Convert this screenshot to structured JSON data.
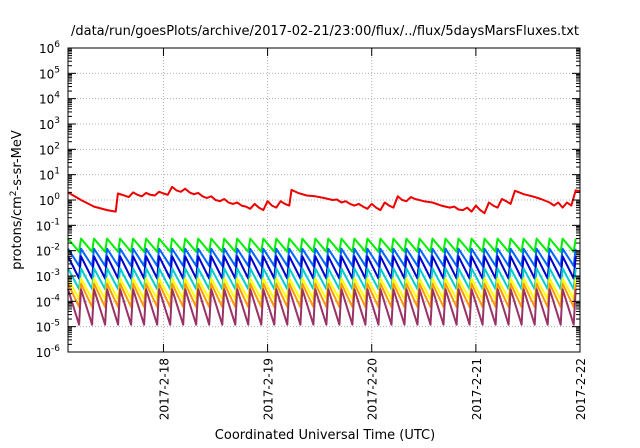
{
  "chart_data": {
    "type": "line",
    "title": "/data/run/goesPlots/archive/2017-02-21/23:00/flux/../flux/5daysMarsFluxes.txt",
    "xlabel": "Coordinated Universal Time (UTC)",
    "ylabel": "protons/cm²-s-sr-MeV",
    "yscale": "log",
    "ylim": [
      1e-06,
      1000000.0
    ],
    "xlim": [
      "2017-02-17 02:00",
      "2017-02-22 00:00"
    ],
    "grid": true,
    "legend": "none",
    "x_ticks": [
      {
        "date": "2017-02-18",
        "label": "2017-2-18"
      },
      {
        "date": "2017-02-19",
        "label": "2017-2-19"
      },
      {
        "date": "2017-02-20",
        "label": "2017-2-20"
      },
      {
        "date": "2017-02-21",
        "label": "2017-2-21"
      },
      {
        "date": "2017-02-22",
        "label": "2017-2-22"
      }
    ],
    "y_ticks": [
      {
        "base": "10",
        "exp": "-6",
        "value": 1e-06
      },
      {
        "base": "10",
        "exp": "-5",
        "value": 1e-05
      },
      {
        "base": "10",
        "exp": "-4",
        "value": 0.0001
      },
      {
        "base": "10",
        "exp": "-3",
        "value": 0.001
      },
      {
        "base": "10",
        "exp": "-2",
        "value": 0.01
      },
      {
        "base": "10",
        "exp": "-1",
        "value": 0.1
      },
      {
        "base": "10",
        "exp": "0",
        "value": 1
      },
      {
        "base": "10",
        "exp": "1",
        "value": 10
      },
      {
        "base": "10",
        "exp": "2",
        "value": 100
      },
      {
        "base": "10",
        "exp": "3",
        "value": 1000
      },
      {
        "base": "10",
        "exp": "4",
        "value": 10000
      },
      {
        "base": "10",
        "exp": "5",
        "value": 100000
      },
      {
        "base": "10",
        "exp": "6",
        "value": 1000000
      }
    ],
    "series": [
      {
        "color": "#ee0000",
        "points": [
          [
            "2017-02-17 02:00",
            2.0
          ],
          [
            "2017-02-17 05:00",
            1.0
          ],
          [
            "2017-02-17 08:00",
            0.55
          ],
          [
            "2017-02-17 11:00",
            0.4
          ],
          [
            "2017-02-17 13:00",
            0.35
          ],
          [
            "2017-02-17 13:30",
            1.8
          ],
          [
            "2017-02-17 15:00",
            1.5
          ],
          [
            "2017-02-17 16:00",
            1.3
          ],
          [
            "2017-02-17 17:00",
            2.0
          ],
          [
            "2017-02-17 18:00",
            1.6
          ],
          [
            "2017-02-17 19:00",
            1.4
          ],
          [
            "2017-02-17 20:00",
            1.9
          ],
          [
            "2017-02-17 21:00",
            1.6
          ],
          [
            "2017-02-17 22:00",
            1.5
          ],
          [
            "2017-02-17 23:00",
            2.1
          ],
          [
            "2017-02-18 00:00",
            1.8
          ],
          [
            "2017-02-18 01:00",
            1.6
          ],
          [
            "2017-02-18 02:00",
            3.3
          ],
          [
            "2017-02-18 03:00",
            2.4
          ],
          [
            "2017-02-18 04:00",
            2.1
          ],
          [
            "2017-02-18 05:00",
            2.8
          ],
          [
            "2017-02-18 06:00",
            2.0
          ],
          [
            "2017-02-18 07:00",
            1.7
          ],
          [
            "2017-02-18 08:00",
            1.9
          ],
          [
            "2017-02-18 09:00",
            1.4
          ],
          [
            "2017-02-18 10:00",
            1.2
          ],
          [
            "2017-02-18 11:00",
            1.4
          ],
          [
            "2017-02-18 12:00",
            1.0
          ],
          [
            "2017-02-18 13:00",
            0.9
          ],
          [
            "2017-02-18 14:00",
            1.1
          ],
          [
            "2017-02-18 15:00",
            0.8
          ],
          [
            "2017-02-18 16:00",
            0.7
          ],
          [
            "2017-02-18 17:00",
            0.8
          ],
          [
            "2017-02-18 18:00",
            0.6
          ],
          [
            "2017-02-18 19:00",
            0.55
          ],
          [
            "2017-02-18 20:00",
            0.45
          ],
          [
            "2017-02-18 21:00",
            0.7
          ],
          [
            "2017-02-18 22:00",
            0.5
          ],
          [
            "2017-02-18 23:00",
            0.4
          ],
          [
            "2017-02-19 00:00",
            0.9
          ],
          [
            "2017-02-19 01:00",
            0.6
          ],
          [
            "2017-02-19 02:00",
            0.5
          ],
          [
            "2017-02-19 03:00",
            0.9
          ],
          [
            "2017-02-19 04:00",
            0.7
          ],
          [
            "2017-02-19 05:00",
            0.6
          ],
          [
            "2017-02-19 05:30",
            2.5
          ],
          [
            "2017-02-19 07:00",
            1.9
          ],
          [
            "2017-02-19 09:00",
            1.5
          ],
          [
            "2017-02-19 11:00",
            1.4
          ],
          [
            "2017-02-19 13:00",
            1.2
          ],
          [
            "2017-02-19 15:00",
            1.0
          ],
          [
            "2017-02-19 16:00",
            1.05
          ],
          [
            "2017-02-19 17:00",
            0.8
          ],
          [
            "2017-02-19 18:00",
            0.9
          ],
          [
            "2017-02-19 19:00",
            0.7
          ],
          [
            "2017-02-19 20:00",
            0.6
          ],
          [
            "2017-02-19 21:00",
            0.7
          ],
          [
            "2017-02-19 22:00",
            0.55
          ],
          [
            "2017-02-19 23:00",
            0.45
          ],
          [
            "2017-02-20 00:00",
            0.7
          ],
          [
            "2017-02-20 01:00",
            0.5
          ],
          [
            "2017-02-20 02:00",
            0.4
          ],
          [
            "2017-02-20 03:00",
            0.8
          ],
          [
            "2017-02-20 04:00",
            0.6
          ],
          [
            "2017-02-20 05:00",
            0.5
          ],
          [
            "2017-02-20 06:00",
            1.4
          ],
          [
            "2017-02-20 07:00",
            1.0
          ],
          [
            "2017-02-20 08:00",
            0.9
          ],
          [
            "2017-02-20 09:00",
            1.3
          ],
          [
            "2017-02-20 10:00",
            1.1
          ],
          [
            "2017-02-20 12:00",
            0.9
          ],
          [
            "2017-02-20 14:00",
            0.8
          ],
          [
            "2017-02-20 16:00",
            0.6
          ],
          [
            "2017-02-20 18:00",
            0.5
          ],
          [
            "2017-02-20 19:00",
            0.55
          ],
          [
            "2017-02-20 20:00",
            0.42
          ],
          [
            "2017-02-20 21:00",
            0.4
          ],
          [
            "2017-02-20 22:00",
            0.5
          ],
          [
            "2017-02-20 23:00",
            0.35
          ],
          [
            "2017-02-21 00:00",
            0.6
          ],
          [
            "2017-02-21 01:00",
            0.4
          ],
          [
            "2017-02-21 02:00",
            0.3
          ],
          [
            "2017-02-21 03:00",
            0.8
          ],
          [
            "2017-02-21 04:00",
            0.6
          ],
          [
            "2017-02-21 05:00",
            0.5
          ],
          [
            "2017-02-21 06:00",
            1.1
          ],
          [
            "2017-02-21 07:00",
            0.9
          ],
          [
            "2017-02-21 08:00",
            0.7
          ],
          [
            "2017-02-21 09:00",
            2.3
          ],
          [
            "2017-02-21 10:00",
            2.0
          ],
          [
            "2017-02-21 11:00",
            1.7
          ],
          [
            "2017-02-21 13:00",
            1.4
          ],
          [
            "2017-02-21 15:00",
            1.1
          ],
          [
            "2017-02-21 17:00",
            0.8
          ],
          [
            "2017-02-21 18:00",
            0.6
          ],
          [
            "2017-02-21 19:00",
            0.8
          ],
          [
            "2017-02-21 20:00",
            0.5
          ],
          [
            "2017-02-21 21:00",
            0.8
          ],
          [
            "2017-02-21 22:00",
            0.6
          ],
          [
            "2017-02-21 23:00",
            2.4
          ],
          [
            "2017-02-22 00:00",
            2.2
          ]
        ]
      },
      {
        "color": "#00ee00",
        "peak": 0.03,
        "trough": 0.009
      },
      {
        "color": "#0066ff",
        "peak": 0.012,
        "trough": 0.0025
      },
      {
        "color": "#0000cc",
        "peak": 0.006,
        "trough": 0.0008
      },
      {
        "color": "#00cccc",
        "peak": 0.002,
        "trough": 0.0003
      },
      {
        "color": "#ffff00",
        "peak": 0.0008,
        "trough": 0.00012
      },
      {
        "color": "#ff9900",
        "peak": 0.0005,
        "trough": 6e-05
      },
      {
        "color": "#993366",
        "peak": 0.0003,
        "trough": 1.2e-05
      }
    ],
    "oscillation_period_hours": 3
  }
}
